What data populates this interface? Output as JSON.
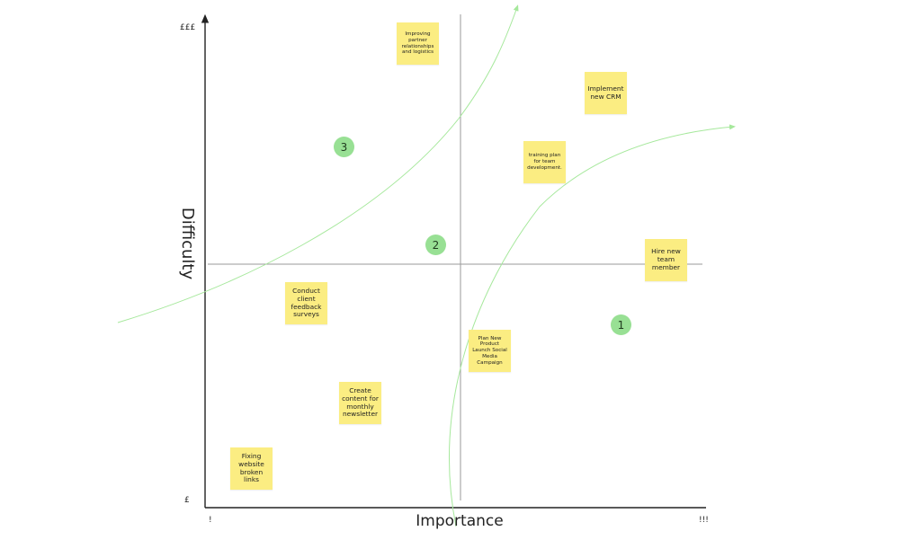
{
  "axes": {
    "x_label": "Importance",
    "y_label": "Difficulty",
    "x_low": "!",
    "x_high": "!!!",
    "y_low": "£",
    "y_high": "£££"
  },
  "stickies": [
    {
      "text": "Improving partner relationships and logistics"
    },
    {
      "text": "Implement new CRM"
    },
    {
      "text": "training plan for team development."
    },
    {
      "text": "Hire new team member"
    },
    {
      "text": "Conduct client feedback surveys"
    },
    {
      "text": "Plan New Product Launch Social Media Campaign"
    },
    {
      "text": "Create content for monthly newsletter"
    },
    {
      "text": "Fixing website broken links"
    }
  ],
  "badges": [
    {
      "label": "1"
    },
    {
      "label": "2"
    },
    {
      "label": "3"
    }
  ],
  "colors": {
    "sticky": "#fbed82",
    "badge": "#98e094",
    "curve": "#a6e89c",
    "axis": "#222222",
    "divider": "#9a9a9a"
  }
}
